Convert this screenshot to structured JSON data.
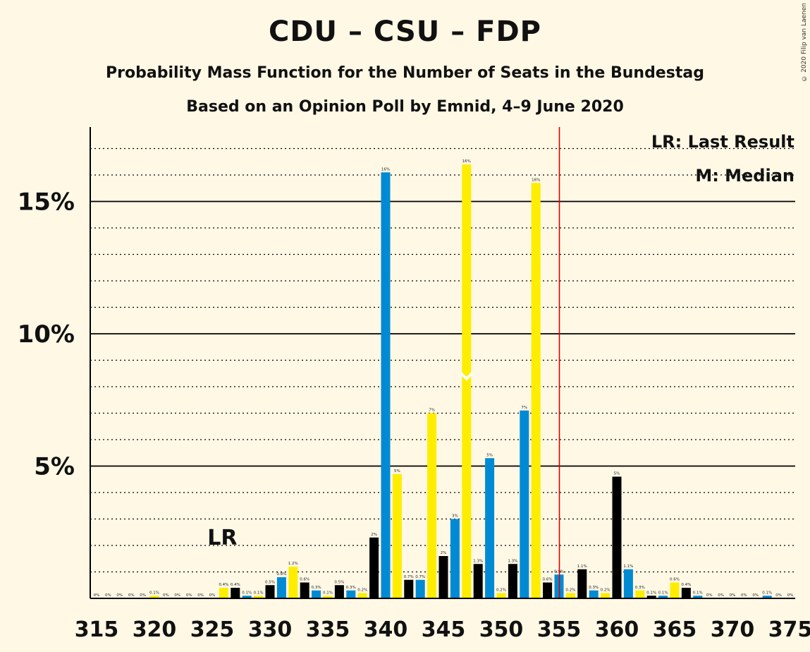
{
  "title": "CDU – CSU – FDP",
  "subtitle1": "Probability Mass Function for the Number of Seats in the Bundestag",
  "subtitle2": "Based on an Opinion Poll by Emnid, 4–9 June 2020",
  "copyright": "© 2020 Filip van Laenen",
  "legend": {
    "lr": "LR: Last Result",
    "median": "M: Median"
  },
  "colors": {
    "blue": "#008AD4",
    "yellow": "#FFED00",
    "black": "#000000",
    "majority": "#E00000",
    "background": "#FFF8E5"
  },
  "chart_data": {
    "type": "bar",
    "xlim": [
      315,
      375
    ],
    "ylim": [
      0,
      17.8
    ],
    "y_ticks": [
      {
        "value": 5,
        "label": "5%"
      },
      {
        "value": 10,
        "label": "10%"
      },
      {
        "value": 15,
        "label": "15%"
      }
    ],
    "x_ticks": [
      315,
      320,
      325,
      330,
      335,
      340,
      345,
      350,
      355,
      360,
      365,
      370,
      375
    ],
    "last_result": {
      "seat": 326,
      "label": "LR"
    },
    "median": {
      "seat": 347,
      "label": "M"
    },
    "majority_line": 355,
    "bars": [
      {
        "seat": 315,
        "value": 0,
        "label": "0%",
        "color": "black"
      },
      {
        "seat": 316,
        "value": 0,
        "label": "0%",
        "color": "blue"
      },
      {
        "seat": 317,
        "value": 0,
        "label": "0%",
        "color": "yellow"
      },
      {
        "seat": 318,
        "value": 0,
        "label": "0%",
        "color": "black"
      },
      {
        "seat": 319,
        "value": 0,
        "label": "0%",
        "color": "blue"
      },
      {
        "seat": 320,
        "value": 0.1,
        "label": "0.1%",
        "color": "yellow"
      },
      {
        "seat": 321,
        "value": 0,
        "label": "0%",
        "color": "black"
      },
      {
        "seat": 322,
        "value": 0,
        "label": "0%",
        "color": "blue"
      },
      {
        "seat": 323,
        "value": 0,
        "label": "0%",
        "color": "yellow"
      },
      {
        "seat": 324,
        "value": 0,
        "label": "0%",
        "color": "black"
      },
      {
        "seat": 325,
        "value": 0,
        "label": "0%",
        "color": "blue"
      },
      {
        "seat": 326,
        "value": 0.4,
        "label": "0.4%",
        "color": "yellow"
      },
      {
        "seat": 327,
        "value": 0.4,
        "label": "0.4%",
        "color": "black"
      },
      {
        "seat": 328,
        "value": 0.1,
        "label": "0.1%",
        "color": "blue"
      },
      {
        "seat": 329,
        "value": 0.1,
        "label": "0.1%",
        "color": "yellow"
      },
      {
        "seat": 330,
        "value": 0.5,
        "label": "0.5%",
        "color": "black"
      },
      {
        "seat": 331,
        "value": 0.8,
        "label": "0.8%",
        "color": "blue"
      },
      {
        "seat": 332,
        "value": 1.2,
        "label": "1.2%",
        "color": "yellow"
      },
      {
        "seat": 333,
        "value": 0.6,
        "label": "0.6%",
        "color": "black"
      },
      {
        "seat": 334,
        "value": 0.3,
        "label": "0.3%",
        "color": "blue"
      },
      {
        "seat": 335,
        "value": 0.1,
        "label": "0.1%",
        "color": "yellow"
      },
      {
        "seat": 336,
        "value": 0.5,
        "label": "0.5%",
        "color": "black"
      },
      {
        "seat": 337,
        "value": 0.3,
        "label": "0.3%",
        "color": "blue"
      },
      {
        "seat": 338,
        "value": 0.2,
        "label": "0.2%",
        "color": "yellow"
      },
      {
        "seat": 339,
        "value": 2.3,
        "label": "2%",
        "color": "black"
      },
      {
        "seat": 340,
        "value": 16.1,
        "label": "16%",
        "color": "blue"
      },
      {
        "seat": 341,
        "value": 4.7,
        "label": "5%",
        "color": "yellow"
      },
      {
        "seat": 342,
        "value": 0.7,
        "label": "0.7%",
        "color": "black"
      },
      {
        "seat": 343,
        "value": 0.7,
        "label": "0.7%",
        "color": "blue"
      },
      {
        "seat": 344,
        "value": 7.0,
        "label": "7%",
        "color": "yellow"
      },
      {
        "seat": 345,
        "value": 1.6,
        "label": "2%",
        "color": "black"
      },
      {
        "seat": 346,
        "value": 3.0,
        "label": "3%",
        "color": "blue"
      },
      {
        "seat": 347,
        "value": 16.4,
        "label": "16%",
        "color": "yellow"
      },
      {
        "seat": 348,
        "value": 1.3,
        "label": "1.3%",
        "color": "black"
      },
      {
        "seat": 349,
        "value": 5.3,
        "label": "5%",
        "color": "blue"
      },
      {
        "seat": 350,
        "value": 0.2,
        "label": "0.2%",
        "color": "yellow"
      },
      {
        "seat": 351,
        "value": 1.3,
        "label": "1.3%",
        "color": "black"
      },
      {
        "seat": 352,
        "value": 7.1,
        "label": "7%",
        "color": "blue"
      },
      {
        "seat": 353,
        "value": 15.7,
        "label": "16%",
        "color": "yellow"
      },
      {
        "seat": 354,
        "value": 0.6,
        "label": "0.6%",
        "color": "black"
      },
      {
        "seat": 355,
        "value": 0.9,
        "label": "0.9%",
        "color": "blue"
      },
      {
        "seat": 356,
        "value": 0.2,
        "label": "0.2%",
        "color": "yellow"
      },
      {
        "seat": 357,
        "value": 1.1,
        "label": "1.1%",
        "color": "black"
      },
      {
        "seat": 358,
        "value": 0.3,
        "label": "0.3%",
        "color": "blue"
      },
      {
        "seat": 359,
        "value": 0.2,
        "label": "0.2%",
        "color": "yellow"
      },
      {
        "seat": 360,
        "value": 4.6,
        "label": "5%",
        "color": "black"
      },
      {
        "seat": 361,
        "value": 1.1,
        "label": "1.1%",
        "color": "blue"
      },
      {
        "seat": 362,
        "value": 0.3,
        "label": "0.3%",
        "color": "yellow"
      },
      {
        "seat": 363,
        "value": 0.1,
        "label": "0.1%",
        "color": "black"
      },
      {
        "seat": 364,
        "value": 0.1,
        "label": "0.1%",
        "color": "blue"
      },
      {
        "seat": 365,
        "value": 0.6,
        "label": "0.6%",
        "color": "yellow"
      },
      {
        "seat": 366,
        "value": 0.4,
        "label": "0.4%",
        "color": "black"
      },
      {
        "seat": 367,
        "value": 0.1,
        "label": "0.1%",
        "color": "blue"
      },
      {
        "seat": 368,
        "value": 0,
        "label": "0%",
        "color": "yellow"
      },
      {
        "seat": 369,
        "value": 0,
        "label": "0%",
        "color": "black"
      },
      {
        "seat": 370,
        "value": 0,
        "label": "0%",
        "color": "blue"
      },
      {
        "seat": 371,
        "value": 0,
        "label": "0%",
        "color": "yellow"
      },
      {
        "seat": 372,
        "value": 0,
        "label": "0%",
        "color": "black"
      },
      {
        "seat": 373,
        "value": 0.1,
        "label": "0.1%",
        "color": "blue"
      },
      {
        "seat": 374,
        "value": 0,
        "label": "0%",
        "color": "yellow"
      },
      {
        "seat": 375,
        "value": 0,
        "label": "0%",
        "color": "black"
      }
    ]
  }
}
